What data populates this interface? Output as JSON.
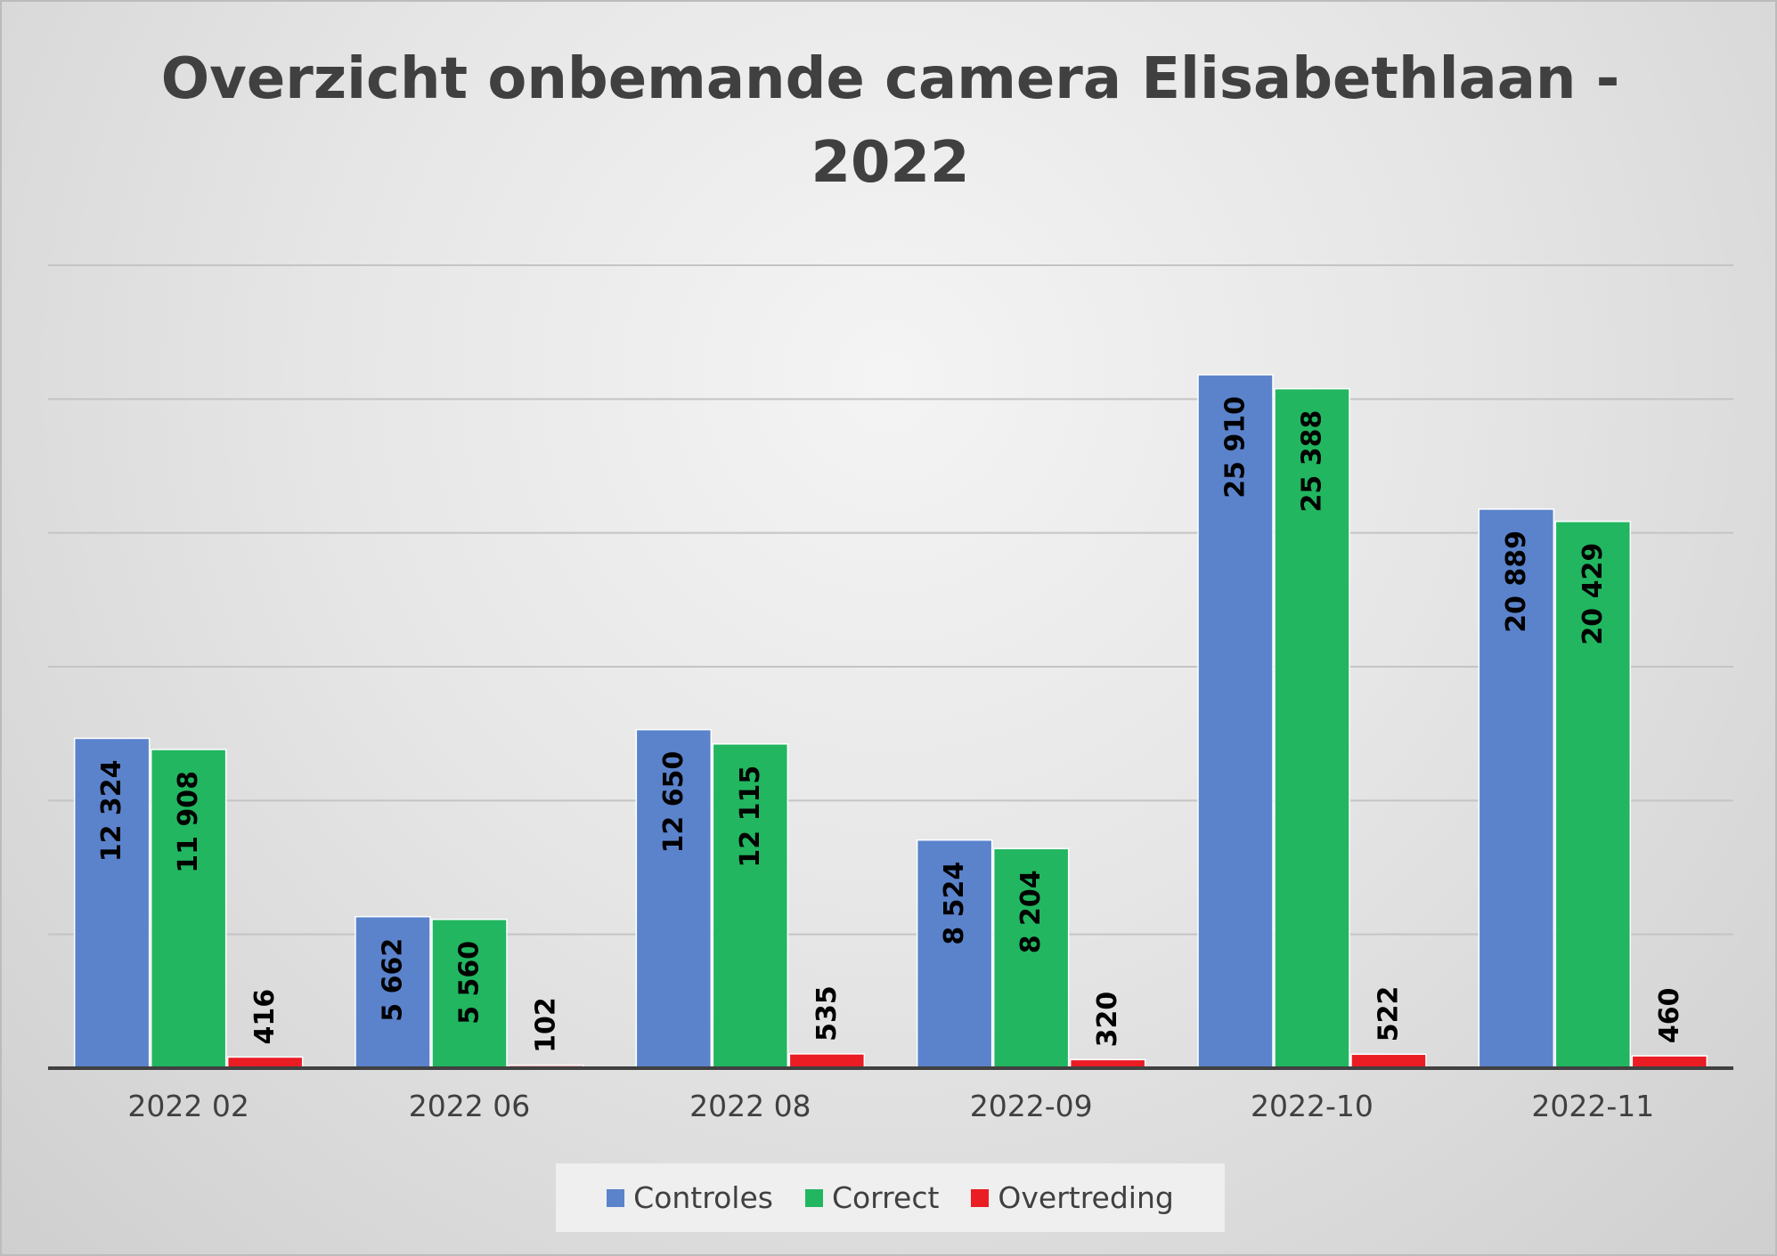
{
  "chart_data": {
    "type": "bar",
    "title": [
      "Overzicht onbemande camera Elisabethlaan -",
      "2022"
    ],
    "xlabel": "",
    "ylabel": "",
    "ylim": [
      0,
      30000
    ],
    "grid": true,
    "legend_position": "bottom",
    "categories": [
      "2022 02",
      "2022 06",
      "2022 08",
      "2022-09",
      "2022-10",
      "2022-11"
    ],
    "series": [
      {
        "name": "Controles",
        "color": "#5b83cc",
        "values": [
          12324,
          5662,
          12650,
          8524,
          25910,
          20889
        ],
        "labels": [
          "12 324",
          "5 662",
          "12 650",
          "8 524",
          "25 910",
          "20 889"
        ]
      },
      {
        "name": "Correct",
        "color": "#22b660",
        "values": [
          11908,
          5560,
          12115,
          8204,
          25388,
          20429
        ],
        "labels": [
          "11 908",
          "5 560",
          "12 115",
          "8 204",
          "25 388",
          "20 429"
        ]
      },
      {
        "name": "Overtreding",
        "color": "#ea1c24",
        "values": [
          416,
          102,
          535,
          320,
          522,
          460
        ],
        "labels": [
          "416",
          "102",
          "535",
          "320",
          "522",
          "460"
        ]
      }
    ]
  }
}
